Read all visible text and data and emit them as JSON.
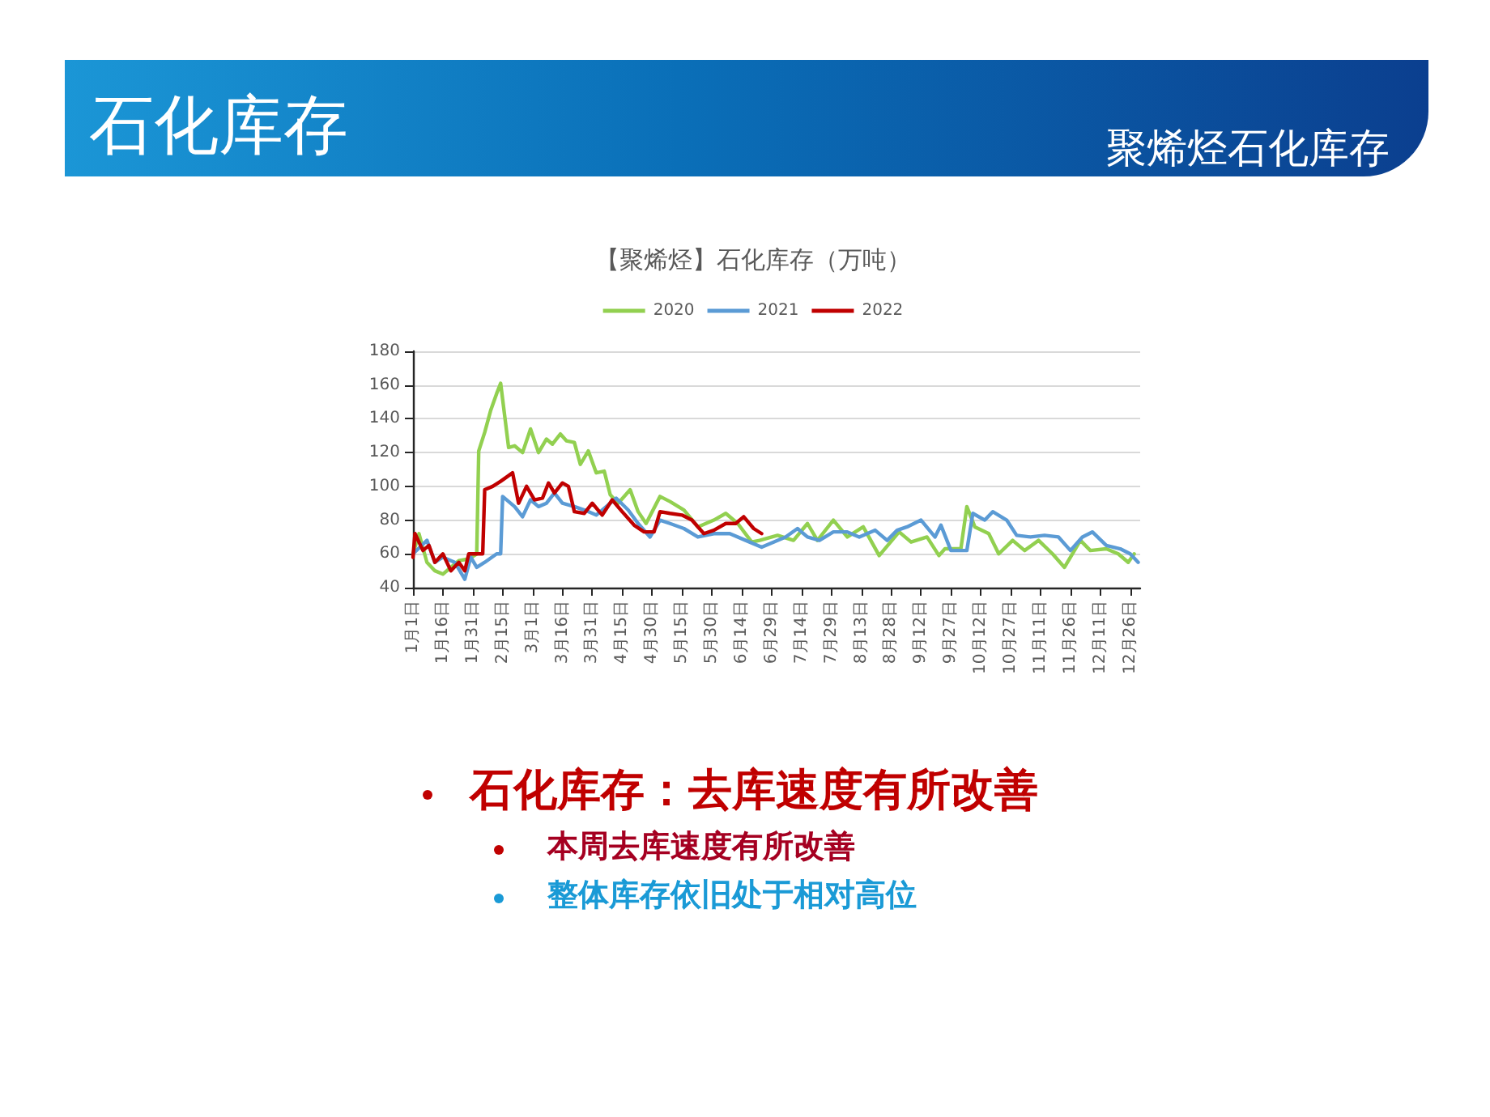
{
  "chart_data": {
    "type": "line",
    "title": "【聚烯烃】石化库存（万吨）",
    "annotations": [
      "石化库存",
      "聚烯烃石化库存",
      "石化库存：去库速度有所改善",
      "本周去库速度有所改善",
      "整体库存依旧处于相对高位"
    ],
    "xlim": [
      "--01-01",
      "--12-31"
    ],
    "xticks": [
      {
        "value": "--01-01",
        "label": "1月1日"
      },
      {
        "value": "--01-16",
        "label": "1月16日"
      },
      {
        "value": "--01-31",
        "label": "1月31日"
      },
      {
        "value": "--02-15",
        "label": "2月15日"
      },
      {
        "value": "--03-01",
        "label": "3月1日"
      },
      {
        "value": "--03-16",
        "label": "3月16日"
      },
      {
        "value": "--03-31",
        "label": "3月31日"
      },
      {
        "value": "--04-15",
        "label": "4月15日"
      },
      {
        "value": "--04-30",
        "label": "4月30日"
      },
      {
        "value": "--05-15",
        "label": "5月15日"
      },
      {
        "value": "--05-30",
        "label": "5月30日"
      },
      {
        "value": "--06-14",
        "label": "6月14日"
      },
      {
        "value": "--06-29",
        "label": "6月29日"
      },
      {
        "value": "--07-14",
        "label": "7月14日"
      },
      {
        "value": "--07-29",
        "label": "7月29日"
      },
      {
        "value": "--08-13",
        "label": "8月13日"
      },
      {
        "value": "--08-28",
        "label": "8月28日"
      },
      {
        "value": "--09-12",
        "label": "9月12日"
      },
      {
        "value": "--09-27",
        "label": "9月27日"
      },
      {
        "value": "--10-12",
        "label": "10月12日"
      },
      {
        "value": "--10-27",
        "label": "10月27日"
      },
      {
        "value": "--11-11",
        "label": "11月11日"
      },
      {
        "value": "--11-26",
        "label": "11月26日"
      },
      {
        "value": "--12-11",
        "label": "12月11日"
      },
      {
        "value": "--12-26",
        "label": "12月26日"
      }
    ],
    "ylim": [
      40,
      180
    ],
    "yticks": [
      40,
      60,
      80,
      100,
      120,
      140,
      160,
      180
    ],
    "grid": "y",
    "legend": "top",
    "marker": "none",
    "line_style": "solid",
    "series": [
      {
        "name": "2020",
        "color": "#92d050",
        "x": [
          "--01-01",
          "--01-04",
          "--01-08",
          "--01-12",
          "--01-16",
          "--01-20",
          "--01-24",
          "--01-29",
          "--02-02",
          "--02-03",
          "--02-06",
          "--02-09",
          "--02-12",
          "--02-14",
          "--02-18",
          "--02-21",
          "--02-25",
          "--02-29",
          "--03-04",
          "--03-08",
          "--03-11",
          "--03-15",
          "--03-18",
          "--03-22",
          "--03-25",
          "--03-29",
          "--04-02",
          "--04-06",
          "--04-09",
          "--04-13",
          "--04-19",
          "--04-23",
          "--04-27",
          "--05-04",
          "--05-09",
          "--05-16",
          "--05-23",
          "--05-31",
          "--06-06",
          "--06-12",
          "--06-19",
          "--06-23",
          "--07-02",
          "--07-10",
          "--07-17",
          "--07-22",
          "--07-30",
          "--08-06",
          "--08-14",
          "--08-22",
          "--09-01",
          "--09-07",
          "--09-15",
          "--09-21",
          "--09-24",
          "--10-02",
          "--10-05",
          "--10-09",
          "--10-16",
          "--10-21",
          "--10-28",
          "--11-03",
          "--11-10",
          "--11-17",
          "--11-23",
          "--12-01",
          "--12-06",
          "--12-14",
          "--12-20",
          "--12-25",
          "--12-28"
        ],
        "values": [
          60,
          72,
          55,
          50,
          48,
          52,
          56,
          57,
          60,
          121,
          132,
          145,
          155,
          161,
          123,
          124,
          120,
          134,
          120,
          128,
          125,
          131,
          127,
          126,
          113,
          121,
          108,
          109,
          95,
          90,
          98,
          85,
          78,
          94,
          91,
          86,
          76,
          80,
          84,
          78,
          67,
          68,
          71,
          68,
          78,
          68,
          80,
          70,
          76,
          59,
          73,
          67,
          70,
          59,
          63,
          63,
          88,
          76,
          72,
          60,
          68,
          62,
          68,
          60,
          52,
          68,
          62,
          63,
          60,
          55,
          60
        ]
      },
      {
        "name": "2021",
        "color": "#5b9bd5",
        "x": [
          "--01-01",
          "--01-08",
          "--01-12",
          "--01-16",
          "--01-22",
          "--01-27",
          "--01-30",
          "--02-02",
          "--02-06",
          "--02-12",
          "--02-14",
          "--02-15",
          "--02-21",
          "--02-25",
          "--02-29",
          "--03-04",
          "--03-08",
          "--03-12",
          "--03-16",
          "--03-22",
          "--03-27",
          "--04-02",
          "--04-07",
          "--04-12",
          "--04-18",
          "--04-23",
          "--04-29",
          "--05-04",
          "--05-09",
          "--05-16",
          "--05-23",
          "--05-31",
          "--06-08",
          "--06-16",
          "--06-24",
          "--06-30",
          "--07-06",
          "--07-12",
          "--07-17",
          "--07-23",
          "--07-30",
          "--08-06",
          "--08-12",
          "--08-20",
          "--08-26",
          "--08-31",
          "--09-05",
          "--09-12",
          "--09-19",
          "--09-22",
          "--09-27",
          "--10-05",
          "--10-08",
          "--10-14",
          "--10-18",
          "--10-25",
          "--10-30",
          "--11-06",
          "--11-13",
          "--11-20",
          "--11-26",
          "--12-02",
          "--12-07",
          "--12-14",
          "--12-21",
          "--12-26",
          "--12-30"
        ],
        "values": [
          60,
          68,
          55,
          58,
          55,
          45,
          58,
          52,
          55,
          60,
          60,
          94,
          88,
          82,
          92,
          88,
          90,
          96,
          90,
          88,
          86,
          83,
          88,
          93,
          86,
          78,
          70,
          80,
          78,
          75,
          70,
          72,
          72,
          68,
          64,
          67,
          70,
          75,
          70,
          68,
          73,
          73,
          70,
          74,
          68,
          74,
          76,
          80,
          70,
          77,
          62,
          62,
          84,
          80,
          85,
          80,
          71,
          70,
          71,
          70,
          62,
          70,
          73,
          65,
          63,
          60,
          55
        ]
      },
      {
        "name": "2022",
        "color": "#c00000",
        "x": [
          "--01-01",
          "--01-02",
          "--01-06",
          "--01-09",
          "--01-12",
          "--01-16",
          "--01-20",
          "--01-24",
          "--01-27",
          "--01-29",
          "--02-05",
          "--02-06",
          "--02-10",
          "--02-14",
          "--02-20",
          "--02-23",
          "--02-27",
          "--03-02",
          "--03-06",
          "--03-09",
          "--03-12",
          "--03-16",
          "--03-19",
          "--03-22",
          "--03-27",
          "--03-31",
          "--04-05",
          "--04-10",
          "--04-15",
          "--04-21",
          "--04-26",
          "--05-01",
          "--05-04",
          "--05-09",
          "--05-15",
          "--05-20",
          "--05-26",
          "--05-31",
          "--06-06",
          "--06-11",
          "--06-15",
          "--06-20",
          "--06-24"
        ],
        "values": [
          58,
          72,
          62,
          65,
          55,
          60,
          50,
          55,
          50,
          60,
          60,
          98,
          100,
          103,
          108,
          90,
          100,
          92,
          93,
          102,
          96,
          102,
          100,
          85,
          84,
          90,
          83,
          92,
          85,
          77,
          73,
          73,
          85,
          84,
          83,
          80,
          72,
          74,
          78,
          78,
          82,
          75,
          72
        ]
      }
    ]
  }
}
